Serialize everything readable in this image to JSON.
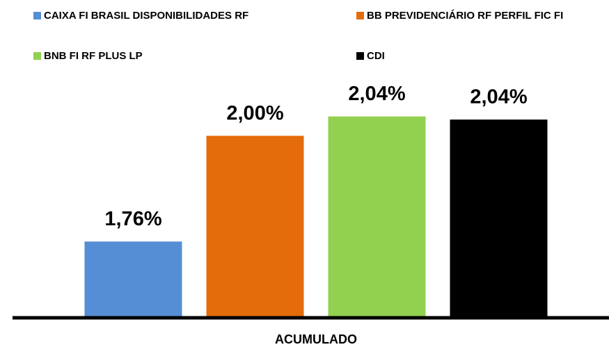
{
  "chart_data": {
    "type": "bar",
    "categories": [
      "ACUMULADO"
    ],
    "series": [
      {
        "name": "CAIXA FI BRASIL DISPONIBILIDADES RF",
        "color": "#558ed5",
        "values": [
          1.76
        ],
        "value_labels": [
          "1,76%"
        ]
      },
      {
        "name": "BB PREVIDENCIÁRIO RF PERFIL FIC FI",
        "color": "#e46c0a",
        "values": [
          2.0
        ],
        "value_labels": [
          "2,00%"
        ]
      },
      {
        "name": "BNB FI RF PLUS LP",
        "color": "#92d050",
        "values": [
          2.044
        ],
        "value_labels": [
          "2,04%"
        ]
      },
      {
        "name": "CDI",
        "color": "#000000",
        "values": [
          2.037
        ],
        "value_labels": [
          "2,04%"
        ]
      }
    ],
    "ylim": [
      1.59,
      2.19
    ],
    "legend": "top"
  }
}
